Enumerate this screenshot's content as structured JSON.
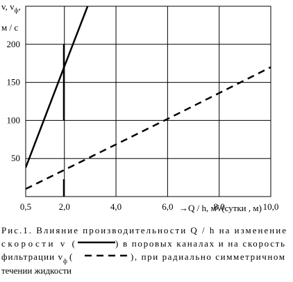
{
  "chart_data": {
    "type": "line",
    "y_label": {
      "text": "v, v",
      "subscript": "ф",
      "suffix": ","
    },
    "y_unit": "м / с",
    "x_label": "→Q / h, м³/(сутки , м)",
    "xlim": [
      0.5,
      10.0
    ],
    "ylim": [
      0,
      250
    ],
    "xticks": [
      {
        "value": 0.5,
        "label": "0,5"
      },
      {
        "value": 2.0,
        "label": "2,0"
      },
      {
        "value": 4.0,
        "label": "4,0"
      },
      {
        "value": 6.0,
        "label": "6,0"
      },
      {
        "value": 8.0,
        "label": "8,0"
      },
      {
        "value": 10.0,
        "label": "10,0"
      }
    ],
    "yticks": [
      50,
      100,
      150,
      200
    ],
    "grid": true,
    "series": [
      {
        "color": "#000000",
        "dashed": false,
        "x": [
          0.5,
          2.0,
          2.9
        ],
        "values": [
          38,
          171,
          250
        ]
      },
      {
        "color": "#000000",
        "dashed": true,
        "x": [
          0.5,
          2.0,
          6.0,
          10.0
        ],
        "values": [
          10,
          35,
          102,
          170
        ]
      }
    ],
    "caption": [
      [
        "Рис.1. Влияние производительности Q / h на изменение"
      ],
      [
        "скорости v (",
        ") в поровых каналах и на скорость"
      ],
      [
        "фильтрации v",
        "ф",
        " (",
        "), при радиально симметричном"
      ],
      [
        "течении жидкости"
      ]
    ]
  }
}
